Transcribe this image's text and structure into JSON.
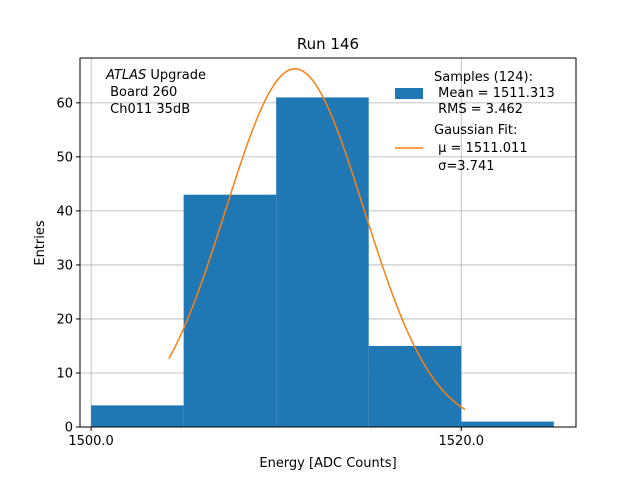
{
  "chart_data": {
    "type": "bar",
    "title": "Run 146",
    "xlabel": "Energy [ADC Counts]",
    "ylabel": "Entries",
    "xlim": [
      1499.4,
      1526.2
    ],
    "ylim": [
      0,
      68.3
    ],
    "xticks": [
      1500.0,
      1520.0
    ],
    "xtick_labels": [
      "1500.0",
      "1520.0"
    ],
    "yticks": [
      0,
      10,
      20,
      30,
      40,
      50,
      60
    ],
    "ytick_labels": [
      "0",
      "10",
      "20",
      "30",
      "40",
      "50",
      "60"
    ],
    "grid": true,
    "bins": [
      {
        "x0": 1500.0,
        "x1": 1505.0,
        "count": 4
      },
      {
        "x0": 1505.0,
        "x1": 1510.0,
        "count": 43
      },
      {
        "x0": 1510.0,
        "x1": 1515.0,
        "count": 61
      },
      {
        "x0": 1515.0,
        "x1": 1520.0,
        "count": 15
      },
      {
        "x0": 1520.0,
        "x1": 1525.0,
        "count": 1
      }
    ],
    "fit": {
      "type": "gaussian",
      "mu": 1511.011,
      "sigma": 3.741,
      "amplitude": 66.3,
      "x_range": [
        1504.2,
        1520.2
      ]
    },
    "annotation": {
      "italic": "ATLAS",
      "line1_rest": " Upgrade",
      "line2": " Board 260",
      "line3": " Ch011 35dB"
    },
    "legend": {
      "position": "top-right",
      "hist_lines": [
        "Samples (124):",
        " Mean = 1511.313",
        " RMS = 3.462"
      ],
      "fit_lines": [
        "Gaussian Fit:",
        " μ = 1511.011",
        " σ=3.741"
      ]
    },
    "colors": {
      "bars": "#1f77b4",
      "fit": "#ff7f0e",
      "grid": "#b0b0b0"
    }
  }
}
